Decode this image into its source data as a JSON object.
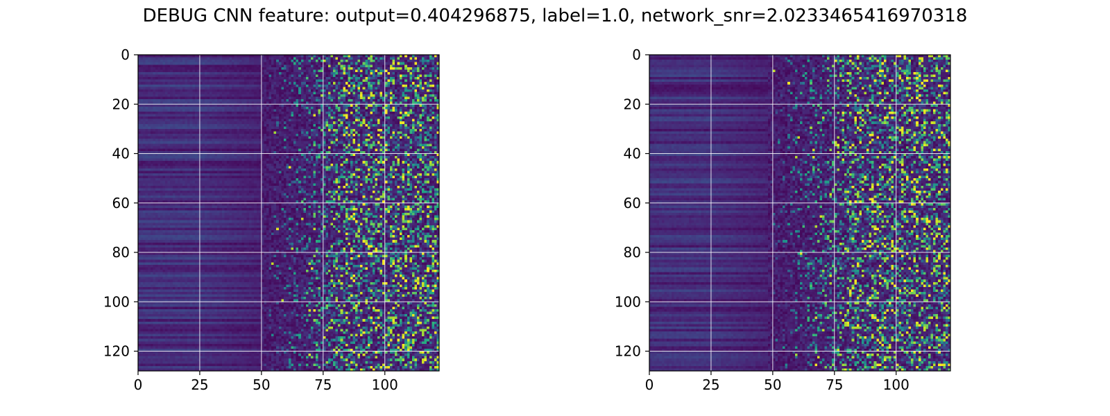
{
  "title": "DEBUG CNN feature: output=0.404296875, label=1.0, network_snr=2.0233465416970318",
  "colormap": "viridis",
  "colors": {
    "grid": "#ffffff",
    "axes": "#000000",
    "viridis_low": "#440154",
    "viridis_mid": "#21918c",
    "viridis_high": "#fde725"
  },
  "chart_data": [
    {
      "type": "heatmap",
      "title": "",
      "xlabel": "",
      "ylabel": "",
      "columns": 122,
      "rows": 128,
      "xlim": [
        0,
        122
      ],
      "ylim": [
        128,
        0
      ],
      "grid": true,
      "x_ticks": [
        0,
        25,
        50,
        75,
        100
      ],
      "y_ticks": [
        0,
        20,
        40,
        60,
        80,
        100,
        120
      ],
      "pattern": "low values for x < 50 (horizontal banding by row), increasingly noisy with bright cells for x > 70"
    },
    {
      "type": "heatmap",
      "title": "",
      "xlabel": "",
      "ylabel": "",
      "columns": 122,
      "rows": 128,
      "xlim": [
        0,
        122
      ],
      "ylim": [
        128,
        0
      ],
      "grid": true,
      "x_ticks": [
        0,
        25,
        50,
        75,
        100
      ],
      "y_ticks": [
        0,
        20,
        40,
        60,
        80,
        100,
        120
      ],
      "pattern": "low values for x < 50 (horizontal banding by row), increasingly noisy with bright cells for x > 60"
    }
  ]
}
